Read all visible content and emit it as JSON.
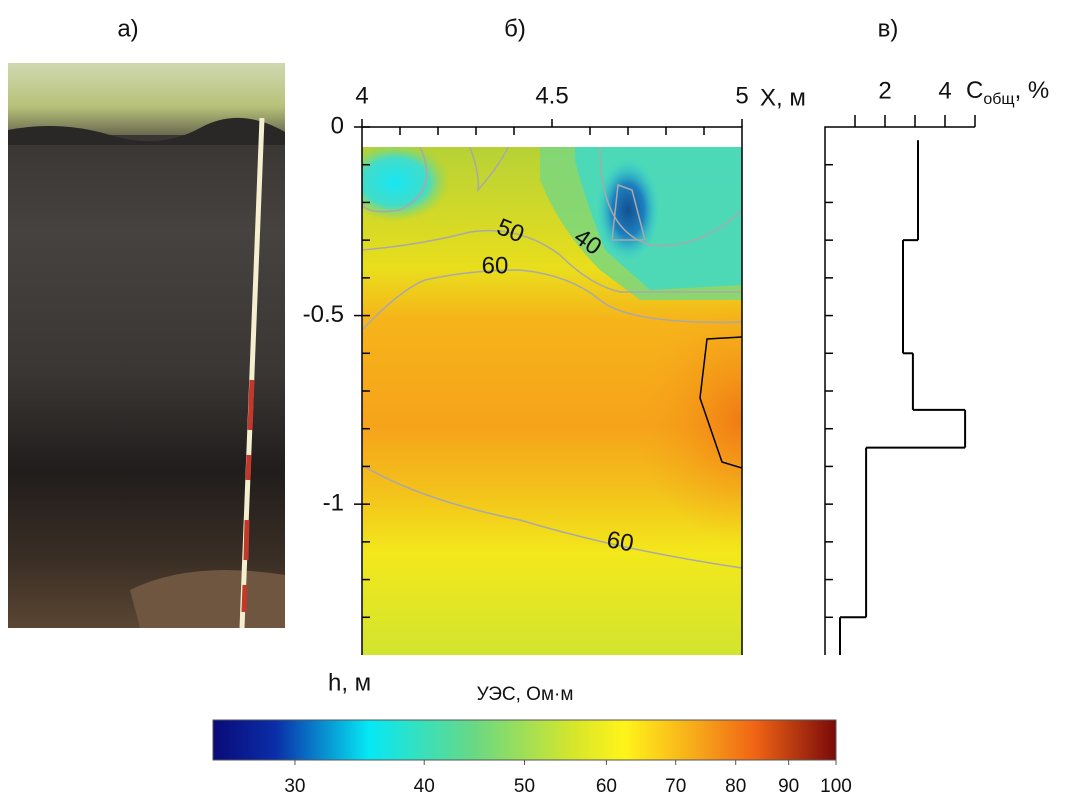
{
  "panel_labels": [
    "а)",
    "б)",
    "в)"
  ],
  "chart_data": [
    {
      "type": "contour",
      "xlabel": "X, м",
      "ylabel": "h, м",
      "xlim": [
        4,
        5
      ],
      "ylim": [
        -1.4,
        0
      ],
      "xticks": [
        4,
        4.5,
        5
      ],
      "xticks_minor": [
        4.1,
        4.2,
        4.3,
        4.4,
        4.6,
        4.7,
        4.8,
        4.9
      ],
      "yticks": [
        0,
        -0.5,
        -1
      ],
      "yticks_minor": [
        -0.1,
        -0.2,
        -0.3,
        -0.4,
        -0.6,
        -0.7,
        -0.8,
        -0.9,
        -1.1,
        -1.2,
        -1.3
      ],
      "contour_labels": [
        50,
        40,
        60,
        60
      ]
    },
    {
      "type": "colorbar",
      "title": "УЭС, Ом·м",
      "clim": [
        25,
        100
      ],
      "log": true,
      "ticks": [
        30,
        40,
        50,
        60,
        70,
        80,
        90,
        100
      ]
    },
    {
      "type": "step",
      "xlabel": {
        "main": "C",
        "sub": "общ",
        "rest": ", %"
      },
      "xlim": [
        0,
        5
      ],
      "xticks": [
        2,
        4
      ],
      "xticks_minor": [
        1,
        3,
        5
      ],
      "ylim": [
        -1.4,
        0
      ],
      "yticks_minor": [
        -0.1,
        -0.2,
        -0.3,
        -0.4,
        -0.5,
        -0.6,
        -0.7,
        -0.8,
        -0.9,
        -1,
        -1.1,
        -1.2,
        -1.3
      ],
      "depth_edges": [
        -0.035,
        -0.3,
        -0.6,
        -0.75,
        -0.85,
        -1.3,
        -1.4
      ],
      "values": [
        3.1,
        2.6,
        2.93,
        4.67,
        1.37,
        0.5
      ],
      "color": "#000000"
    }
  ]
}
